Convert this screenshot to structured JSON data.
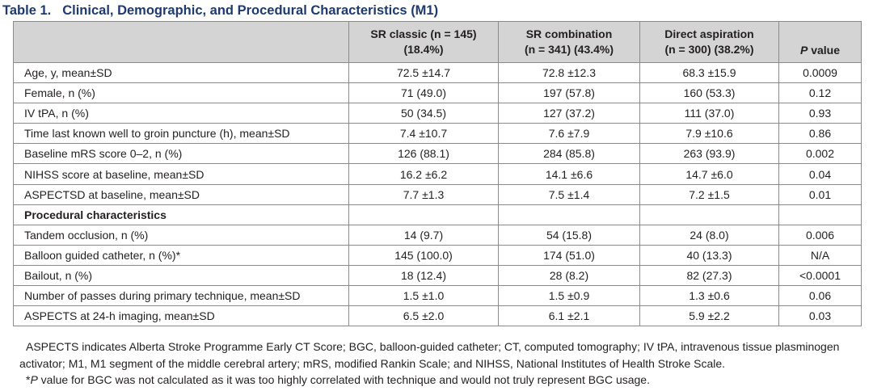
{
  "caption": {
    "label": "Table 1.",
    "title": "Clinical, Demographic, and Procedural Characteristics (M1)"
  },
  "header": {
    "col0": "",
    "col1_line1": "SR classic (n = 145)",
    "col1_line2": "(18.4%)",
    "col2_line1": "SR combination",
    "col2_line2": "(n = 341) (43.4%)",
    "col3_line1": "Direct aspiration",
    "col3_line2": "(n = 300) (38.2%)",
    "col4_p": "P",
    "col4_value": " value"
  },
  "rows": [
    {
      "label": "Age, y, mean±SD",
      "c1": "72.5 ±14.7",
      "c2": "72.8 ±12.3",
      "c3": "68.3 ±15.9",
      "p": "0.0009"
    },
    {
      "label": "Female, n (%)",
      "c1": "71 (49.0)",
      "c2": "197 (57.8)",
      "c3": "160 (53.3)",
      "p": "0.12"
    },
    {
      "label": "IV tPA, n (%)",
      "c1": "50 (34.5)",
      "c2": "127 (37.2)",
      "c3": "111 (37.0)",
      "p": "0.93"
    },
    {
      "label": "Time last known well to groin puncture (h), mean±SD",
      "c1": "7.4 ±10.7",
      "c2": "7.6 ±7.9",
      "c3": "7.9 ±10.6",
      "p": "0.86"
    },
    {
      "label": "Baseline mRS score 0–2, n (%)",
      "c1": "126 (88.1)",
      "c2": "284 (85.8)",
      "c3": "263 (93.9)",
      "p": "0.002"
    },
    {
      "label": "NIHSS score at baseline, mean±SD",
      "c1": "16.2 ±6.2",
      "c2": "14.1 ±6.6",
      "c3": "14.7 ±6.0",
      "p": "0.04"
    },
    {
      "label": "ASPECTSD at baseline, mean±SD",
      "c1": "7.7 ±1.3",
      "c2": "7.5 ±1.4",
      "c3": "7.2 ±1.5",
      "p": "0.01"
    },
    {
      "label": "Tandem occlusion, n (%)",
      "c1": "14 (9.7)",
      "c2": "54 (15.8)",
      "c3": "24 (8.0)",
      "p": "0.006"
    },
    {
      "label": "Balloon guided catheter, n (%)*",
      "c1": "145 (100.0)",
      "c2": "174 (51.0)",
      "c3": "40 (13.3)",
      "p": "N/A"
    },
    {
      "label": "Bailout, n (%)",
      "c1": "18 (12.4)",
      "c2": "28 (8.2)",
      "c3": "82 (27.3)",
      "p": "<0.0001"
    },
    {
      "label": "Number of passes during primary technique, mean±SD",
      "c1": "1.5 ±1.0",
      "c2": "1.5 ±0.9",
      "c3": "1.3 ±0.6",
      "p": "0.06"
    },
    {
      "label": "ASPECTS at 24-h imaging, mean±SD",
      "c1": "6.5 ±2.0",
      "c2": "6.1 ±2.1",
      "c3": "5.9 ±2.2",
      "p": "0.03"
    }
  ],
  "section": {
    "title": "Procedural characteristics"
  },
  "notes": {
    "abbreviations": "ASPECTS indicates Alberta Stroke Programme Early CT Score; BGC, balloon-guided catheter; CT, computed tomography; IV tPA, intravenous tissue plasminogen activator; M1, M1 segment of the middle cerebral artery; mRS, modified Rankin Scale; and NIHSS, National Institutes of Health Stroke Scale.",
    "footnote_mark": "*",
    "footnote_p": "P",
    "footnote_text": " value for BGC was not calculated as it was too highly correlated with technique and would not truly represent BGC usage."
  }
}
